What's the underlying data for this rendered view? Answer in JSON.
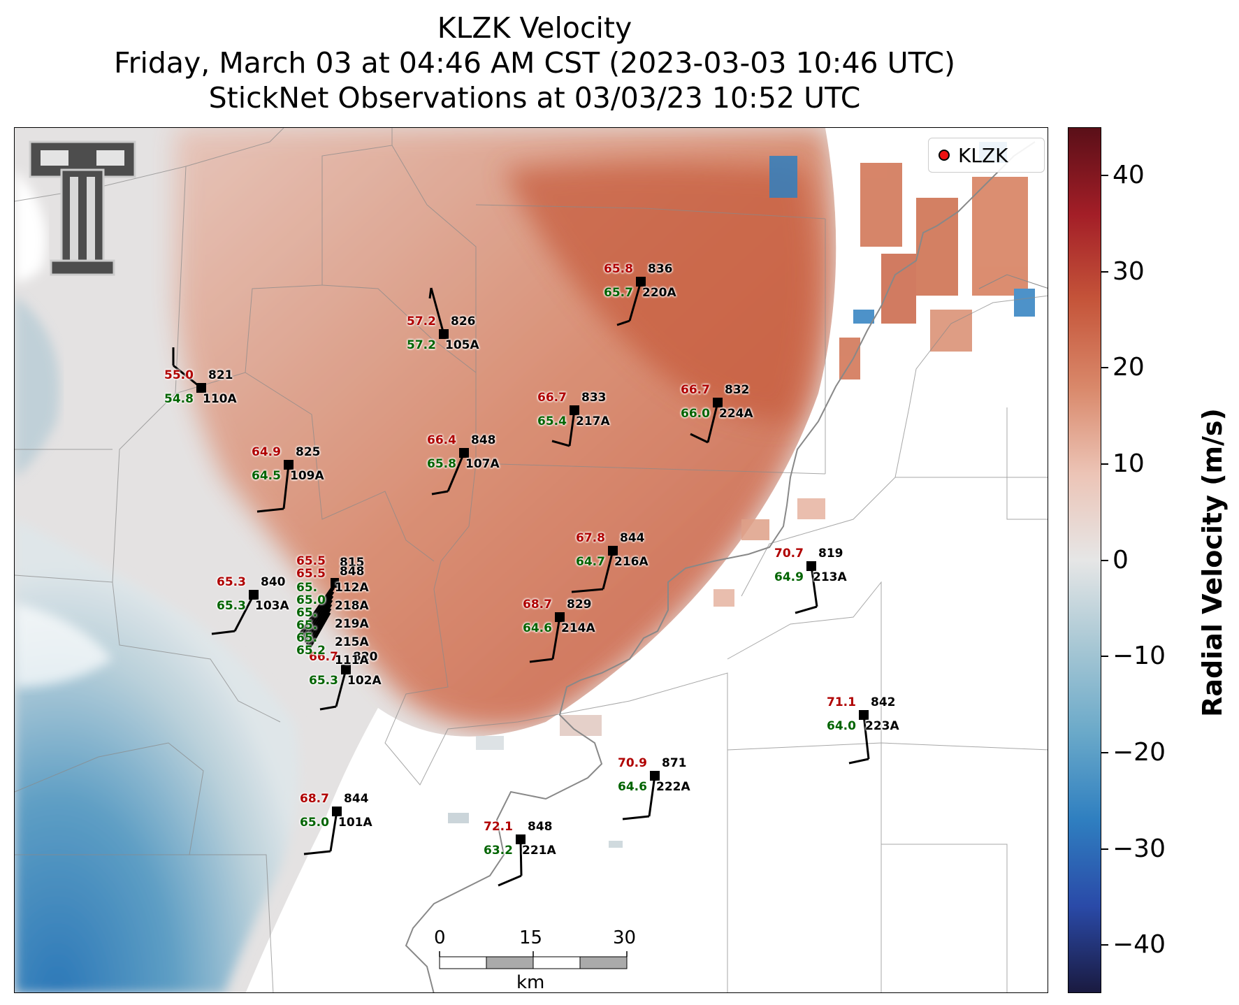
{
  "title": {
    "line1": "KLZK Velocity",
    "line2": "Friday, March 03 at 04:46 AM CST (2023-03-03 10:46 UTC)",
    "line3": "StickNet Observations at 03/03/23 10:52 UTC"
  },
  "legend": {
    "label": "KLZK",
    "marker_color": "#ee1111"
  },
  "colorbar": {
    "title": "Radial Velocity (m/s)",
    "range": [
      -45,
      45
    ],
    "ticks": [
      "40",
      "30",
      "20",
      "10",
      "0",
      "−10",
      "−20",
      "−30",
      "−40"
    ],
    "tick_values": [
      40,
      30,
      20,
      10,
      0,
      -10,
      -20,
      -30,
      -40
    ],
    "colors": [
      "#1a1a40",
      "#2a4aa8",
      "#2f7fc0",
      "#6aa9c9",
      "#a7c7d4",
      "#e6e6e6",
      "#ecc4b6",
      "#d9886a",
      "#c5553a",
      "#a31e27",
      "#5a0f18"
    ]
  },
  "scale_bar": {
    "ticks": [
      "0",
      "15",
      "30"
    ],
    "unit": "km"
  },
  "logo": {
    "name": "Texas Tech Double T"
  },
  "stations": [
    {
      "id": "110A",
      "t": "55.0",
      "td": "54.8",
      "p": "821"
    },
    {
      "id": "105A",
      "t": "57.2",
      "td": "57.2",
      "p": "826"
    },
    {
      "id": "220A",
      "t": "65.8",
      "td": "65.7",
      "p": "836"
    },
    {
      "id": "217A",
      "t": "66.7",
      "td": "65.4",
      "p": "833"
    },
    {
      "id": "224A",
      "t": "66.7",
      "td": "66.0",
      "p": "832"
    },
    {
      "id": "109A",
      "t": "64.9",
      "td": "64.5",
      "p": "825"
    },
    {
      "id": "107A",
      "t": "66.4",
      "td": "65.8",
      "p": "848"
    },
    {
      "id": "216A",
      "t": "67.8",
      "td": "64.7",
      "p": "844"
    },
    {
      "id": "213A",
      "t": "70.7",
      "td": "64.9",
      "p": "819"
    },
    {
      "id": "103A",
      "t": "65.3",
      "td": "65.3",
      "p": "840"
    },
    {
      "id": "214A",
      "t": "68.7",
      "td": "64.6",
      "p": "829"
    },
    {
      "id": "102A",
      "t": "66.7",
      "td": "65.3",
      "p": "820"
    },
    {
      "id": "223A",
      "t": "71.1",
      "td": "64.0",
      "p": "842"
    },
    {
      "id": "222A",
      "t": "70.9",
      "td": "64.6",
      "p": "871"
    },
    {
      "id": "101A",
      "t": "68.7",
      "td": "65.0",
      "p": "844"
    },
    {
      "id": "221A",
      "t": "72.1",
      "td": "63.2",
      "p": "848"
    }
  ],
  "cluster": {
    "temps": [
      "65.5",
      "65.5"
    ],
    "pressures": [
      "815",
      "848"
    ],
    "dews": [
      "65.",
      "65.0",
      "65.",
      "65.",
      "65.",
      "65.2"
    ],
    "ids": [
      "112A",
      "218A",
      "219A",
      "215A",
      "111A"
    ]
  }
}
